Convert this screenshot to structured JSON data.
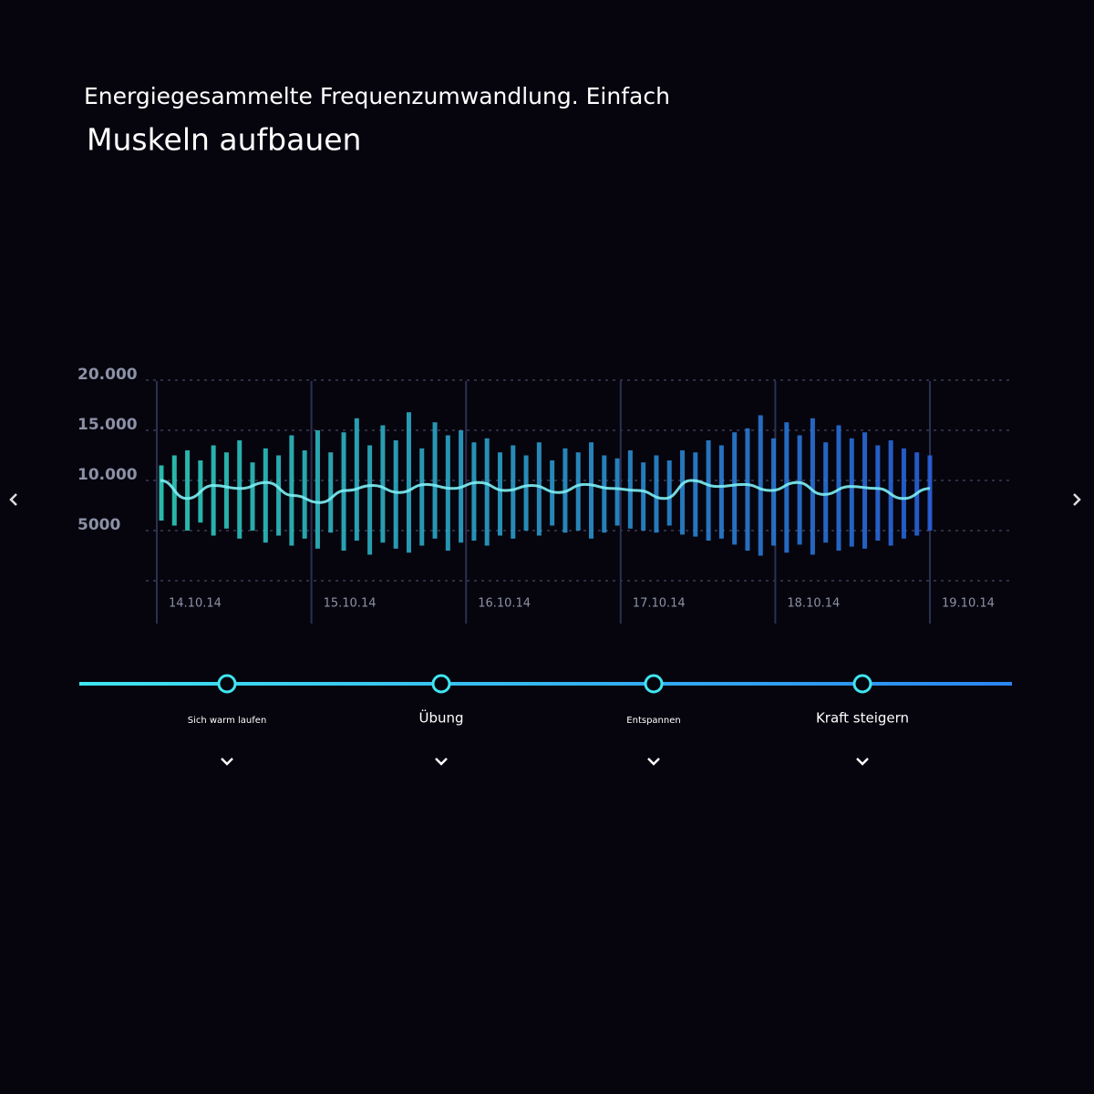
{
  "header": {
    "line1": "Energiegesammelte Frequenzumwandlung. Einfach",
    "line2": "Muskeln aufbauen"
  },
  "chart_data": {
    "type": "range-bar",
    "yticks": [
      {
        "value": 20000,
        "label": "20.000"
      },
      {
        "value": 15000,
        "label": "15.000"
      },
      {
        "value": 10000,
        "label": "10.000"
      },
      5000
    ],
    "ylim": [
      0,
      20000
    ],
    "categories": [
      "14.10.14",
      "15.10.14",
      "16.10.14",
      "17.10.14",
      "18.10.14",
      "19.10.14"
    ],
    "lows": [
      6000,
      5500,
      5000,
      5800,
      4500,
      5200,
      4200,
      5000,
      3800,
      4500,
      3500,
      4200,
      3200,
      4800,
      3000,
      4000,
      2600,
      3800,
      3200,
      2800,
      3500,
      4200,
      3000,
      3800,
      4000,
      3500,
      4500,
      4200,
      5000,
      4500,
      5500,
      4800,
      5000,
      4200,
      4800,
      5500,
      5200,
      5000,
      4800,
      5500,
      4600,
      4400,
      4000,
      4200,
      3600,
      3000,
      2500,
      3500,
      2800,
      3600,
      2600,
      3800,
      3000,
      3400,
      3200,
      4000,
      3500,
      4200,
      4500,
      5000
    ],
    "highs": [
      11500,
      12500,
      13000,
      12000,
      13500,
      12800,
      14000,
      11800,
      13200,
      12500,
      14500,
      13000,
      15000,
      12800,
      14800,
      16200,
      13500,
      15500,
      14000,
      16800,
      13200,
      15800,
      14500,
      15000,
      13800,
      14200,
      12800,
      13500,
      12500,
      13800,
      12000,
      13200,
      12800,
      13800,
      12500,
      12200,
      13000,
      11800,
      12500,
      12000,
      13000,
      12800,
      14000,
      13500,
      14800,
      15200,
      16500,
      14200,
      15800,
      14500,
      16200,
      13800,
      15500,
      14200,
      14800,
      13500,
      14000,
      13200,
      12800,
      12500
    ],
    "line_values": [
      10000,
      8200,
      9500,
      9200,
      9800,
      8500,
      7800,
      9000,
      9500,
      8800,
      9600,
      9200,
      9800,
      9000,
      9500,
      8800,
      9600,
      9200,
      9000,
      8200,
      10000,
      9400,
      9600,
      9000,
      9800,
      8600,
      9400,
      9200,
      8200,
      9200
    ],
    "color_start": "#2fd8c4",
    "color_end": "#2a66e6",
    "grid": true
  },
  "timeline": {
    "steps": [
      "Sich warm laufen",
      "Übung",
      "Entspannen",
      "Kraft steigern"
    ]
  }
}
